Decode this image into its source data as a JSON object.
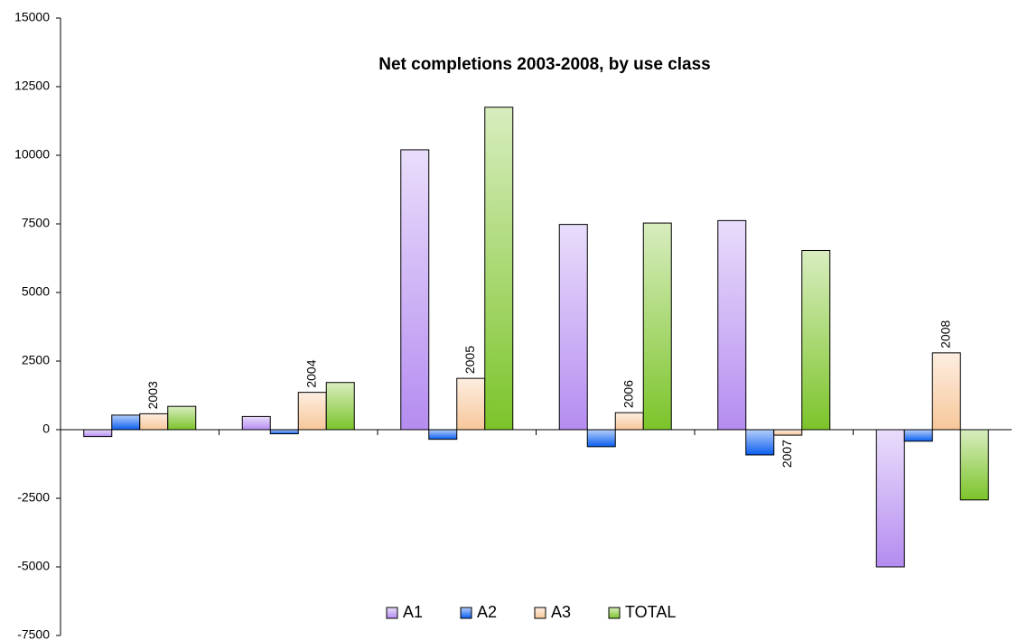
{
  "chart_data": {
    "type": "bar",
    "title": "Net completions 2003-2008, by use class",
    "categories": [
      "2003",
      "2004",
      "2005",
      "2006",
      "2007",
      "2008"
    ],
    "series": [
      {
        "name": "A1",
        "color": "#b58cf0",
        "values": [
          -250,
          480,
          10200,
          7480,
          7620,
          -5000
        ]
      },
      {
        "name": "A2",
        "color": "#0a5ef0",
        "values": [
          530,
          -150,
          -350,
          -620,
          -920,
          -420
        ]
      },
      {
        "name": "A3",
        "color": "#f7c79a",
        "values": [
          580,
          1360,
          1870,
          620,
          -200,
          2800
        ]
      },
      {
        "name": "TOTAL",
        "color": "#7cc42a",
        "values": [
          850,
          1720,
          11750,
          7530,
          6530,
          -2560
        ]
      }
    ],
    "ylim": [
      -7500,
      15000
    ],
    "yticks": [
      -7500,
      -5000,
      -2500,
      0,
      2500,
      5000,
      7500,
      10000,
      12500,
      15000
    ],
    "grid": false,
    "legend": "bottom"
  }
}
